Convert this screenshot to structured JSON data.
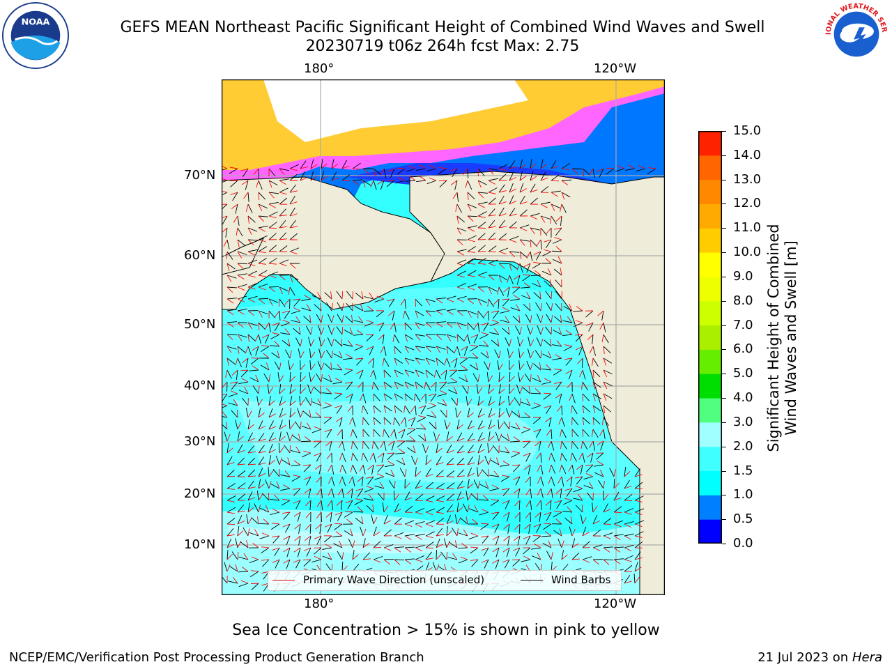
{
  "title": {
    "line1": "GEFS MEAN Northeast Pacific Significant Height of Combined Wind Waves and Swell",
    "line2": "20230719 t06z 264h fcst   Max: 2.75"
  },
  "logos": {
    "left": {
      "icon": "noaa-logo-icon",
      "text": "NOAA"
    },
    "right": {
      "icon": "nws-logo-icon",
      "text": "NATIONAL WEATHER SERVICE"
    }
  },
  "map": {
    "lon_labels": [
      "180°",
      "120°W"
    ],
    "lat_labels": [
      "70°N",
      "60°N",
      "50°N",
      "40°N",
      "30°N",
      "20°N",
      "10°N"
    ],
    "colors": {
      "land": "#efedd9",
      "ocean_low": "#33ffff",
      "ocean_mid": "#8affff",
      "ocean_high": "#b4ffff",
      "deep_blue": "#0000ff",
      "mid_blue": "#0077ff",
      "ice_pink": "#ff66ff",
      "ice_yellow": "#ffcc33",
      "wave_arrow": "#ff0000",
      "wind_barb": "#000000",
      "grid": "#aaaaaa"
    }
  },
  "legend": {
    "primary_wave": "Primary Wave Direction (unscaled)",
    "wind_barbs": "Wind Barbs"
  },
  "colorbar": {
    "label": "Significant Height of Combined Wind Waves and Swell [m]",
    "ticks": [
      "0.0",
      "0.5",
      "1.0",
      "1.5",
      "2.0",
      "3.0",
      "4.0",
      "5.0",
      "6.0",
      "7.0",
      "8.0",
      "9.0",
      "10.0",
      "11.0",
      "12.0",
      "13.0",
      "14.0",
      "15.0"
    ],
    "colors": [
      "#0000ff",
      "#0080ff",
      "#00ffff",
      "#40ffff",
      "#a0ffff",
      "#50ff80",
      "#00dd00",
      "#66ee00",
      "#aaee00",
      "#ccff00",
      "#eeff00",
      "#ffff00",
      "#ffcc00",
      "#ffaa00",
      "#ff8800",
      "#ff6600",
      "#ff2200"
    ]
  },
  "note": "Sea Ice Concentration > 15% is shown in pink to yellow",
  "footer": {
    "left": "NCEP/EMC/Verification Post Processing Product Generation Branch",
    "right_date": "21 Jul 2023 on ",
    "right_host": "Hera"
  }
}
